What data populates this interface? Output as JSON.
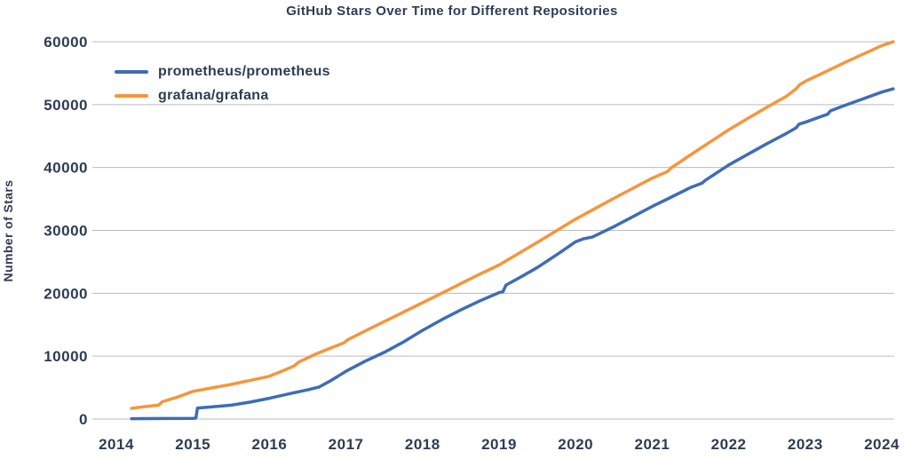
{
  "chart": {
    "title": "GitHub Stars Over Time for Different Repositories",
    "ylabel": "Number of Stars"
  },
  "colors": {
    "background": "#ffffff",
    "text": "#2e3c54",
    "grid": "#b9bcc3",
    "prometheus_blue": "#3e6db5",
    "grafana_orange": "#f7953b"
  },
  "chart_data": {
    "type": "line",
    "title": "GitHub Stars Over Time for Different Repositories",
    "xlabel": "",
    "ylabel": "Number of Stars",
    "xlim": [
      2013.75,
      2024.3
    ],
    "ylim": [
      0,
      60000
    ],
    "x_ticks": [
      2014,
      2015,
      2016,
      2017,
      2018,
      2019,
      2020,
      2021,
      2022,
      2023,
      2024
    ],
    "y_ticks": [
      0,
      10000,
      20000,
      30000,
      40000,
      50000,
      60000
    ],
    "grid": "horizontal",
    "legend_position": "upper-left",
    "series": [
      {
        "name": "prometheus/prometheus",
        "color": "#3e6db5",
        "points": [
          [
            2014.2,
            50
          ],
          [
            2014.6,
            80
          ],
          [
            2015.0,
            110
          ],
          [
            2015.04,
            150
          ],
          [
            2015.06,
            1750
          ],
          [
            2015.25,
            1950
          ],
          [
            2015.5,
            2200
          ],
          [
            2015.75,
            2700
          ],
          [
            2016.0,
            3300
          ],
          [
            2016.25,
            4000
          ],
          [
            2016.5,
            4650
          ],
          [
            2016.65,
            5100
          ],
          [
            2016.8,
            6100
          ],
          [
            2017.0,
            7600
          ],
          [
            2017.25,
            9200
          ],
          [
            2017.5,
            10600
          ],
          [
            2017.75,
            12250
          ],
          [
            2018.0,
            14100
          ],
          [
            2018.25,
            15800
          ],
          [
            2018.5,
            17350
          ],
          [
            2018.75,
            18800
          ],
          [
            2019.0,
            20100
          ],
          [
            2019.05,
            20250
          ],
          [
            2019.09,
            21300
          ],
          [
            2019.3,
            22700
          ],
          [
            2019.5,
            24100
          ],
          [
            2019.75,
            26100
          ],
          [
            2020.0,
            28200
          ],
          [
            2020.1,
            28650
          ],
          [
            2020.22,
            28950
          ],
          [
            2020.5,
            30600
          ],
          [
            2020.75,
            32200
          ],
          [
            2021.0,
            33800
          ],
          [
            2021.25,
            35300
          ],
          [
            2021.5,
            36800
          ],
          [
            2021.65,
            37500
          ],
          [
            2021.7,
            38000
          ],
          [
            2022.0,
            40400
          ],
          [
            2022.25,
            42100
          ],
          [
            2022.5,
            43800
          ],
          [
            2022.75,
            45400
          ],
          [
            2022.88,
            46300
          ],
          [
            2022.92,
            46900
          ],
          [
            2023.0,
            47200
          ],
          [
            2023.25,
            48300
          ],
          [
            2023.29,
            48450
          ],
          [
            2023.33,
            49000
          ],
          [
            2023.5,
            49800
          ],
          [
            2023.75,
            50900
          ],
          [
            2024.0,
            52000
          ],
          [
            2024.15,
            52500
          ]
        ]
      },
      {
        "name": "grafana/grafana",
        "color": "#f7953b",
        "points": [
          [
            2014.2,
            1700
          ],
          [
            2014.35,
            1950
          ],
          [
            2014.55,
            2200
          ],
          [
            2014.6,
            2750
          ],
          [
            2014.8,
            3500
          ],
          [
            2015.0,
            4400
          ],
          [
            2015.25,
            4950
          ],
          [
            2015.5,
            5500
          ],
          [
            2015.75,
            6150
          ],
          [
            2016.0,
            6800
          ],
          [
            2016.2,
            7800
          ],
          [
            2016.33,
            8500
          ],
          [
            2016.38,
            9050
          ],
          [
            2016.6,
            10300
          ],
          [
            2016.8,
            11300
          ],
          [
            2016.97,
            12100
          ],
          [
            2017.02,
            12600
          ],
          [
            2017.25,
            14000
          ],
          [
            2017.5,
            15500
          ],
          [
            2017.75,
            17000
          ],
          [
            2018.0,
            18500
          ],
          [
            2018.25,
            20000
          ],
          [
            2018.5,
            21550
          ],
          [
            2018.75,
            23050
          ],
          [
            2019.0,
            24500
          ],
          [
            2019.25,
            26300
          ],
          [
            2019.5,
            28100
          ],
          [
            2019.75,
            29950
          ],
          [
            2020.0,
            31800
          ],
          [
            2020.25,
            33450
          ],
          [
            2020.5,
            35100
          ],
          [
            2020.75,
            36700
          ],
          [
            2021.0,
            38300
          ],
          [
            2021.2,
            39350
          ],
          [
            2021.25,
            39950
          ],
          [
            2021.5,
            42000
          ],
          [
            2021.75,
            44000
          ],
          [
            2022.0,
            46000
          ],
          [
            2022.25,
            47800
          ],
          [
            2022.5,
            49600
          ],
          [
            2022.75,
            51300
          ],
          [
            2022.88,
            52500
          ],
          [
            2022.93,
            53200
          ],
          [
            2023.0,
            53700
          ],
          [
            2023.25,
            55150
          ],
          [
            2023.5,
            56600
          ],
          [
            2023.75,
            58000
          ],
          [
            2024.0,
            59400
          ],
          [
            2024.15,
            60000
          ]
        ]
      }
    ]
  }
}
